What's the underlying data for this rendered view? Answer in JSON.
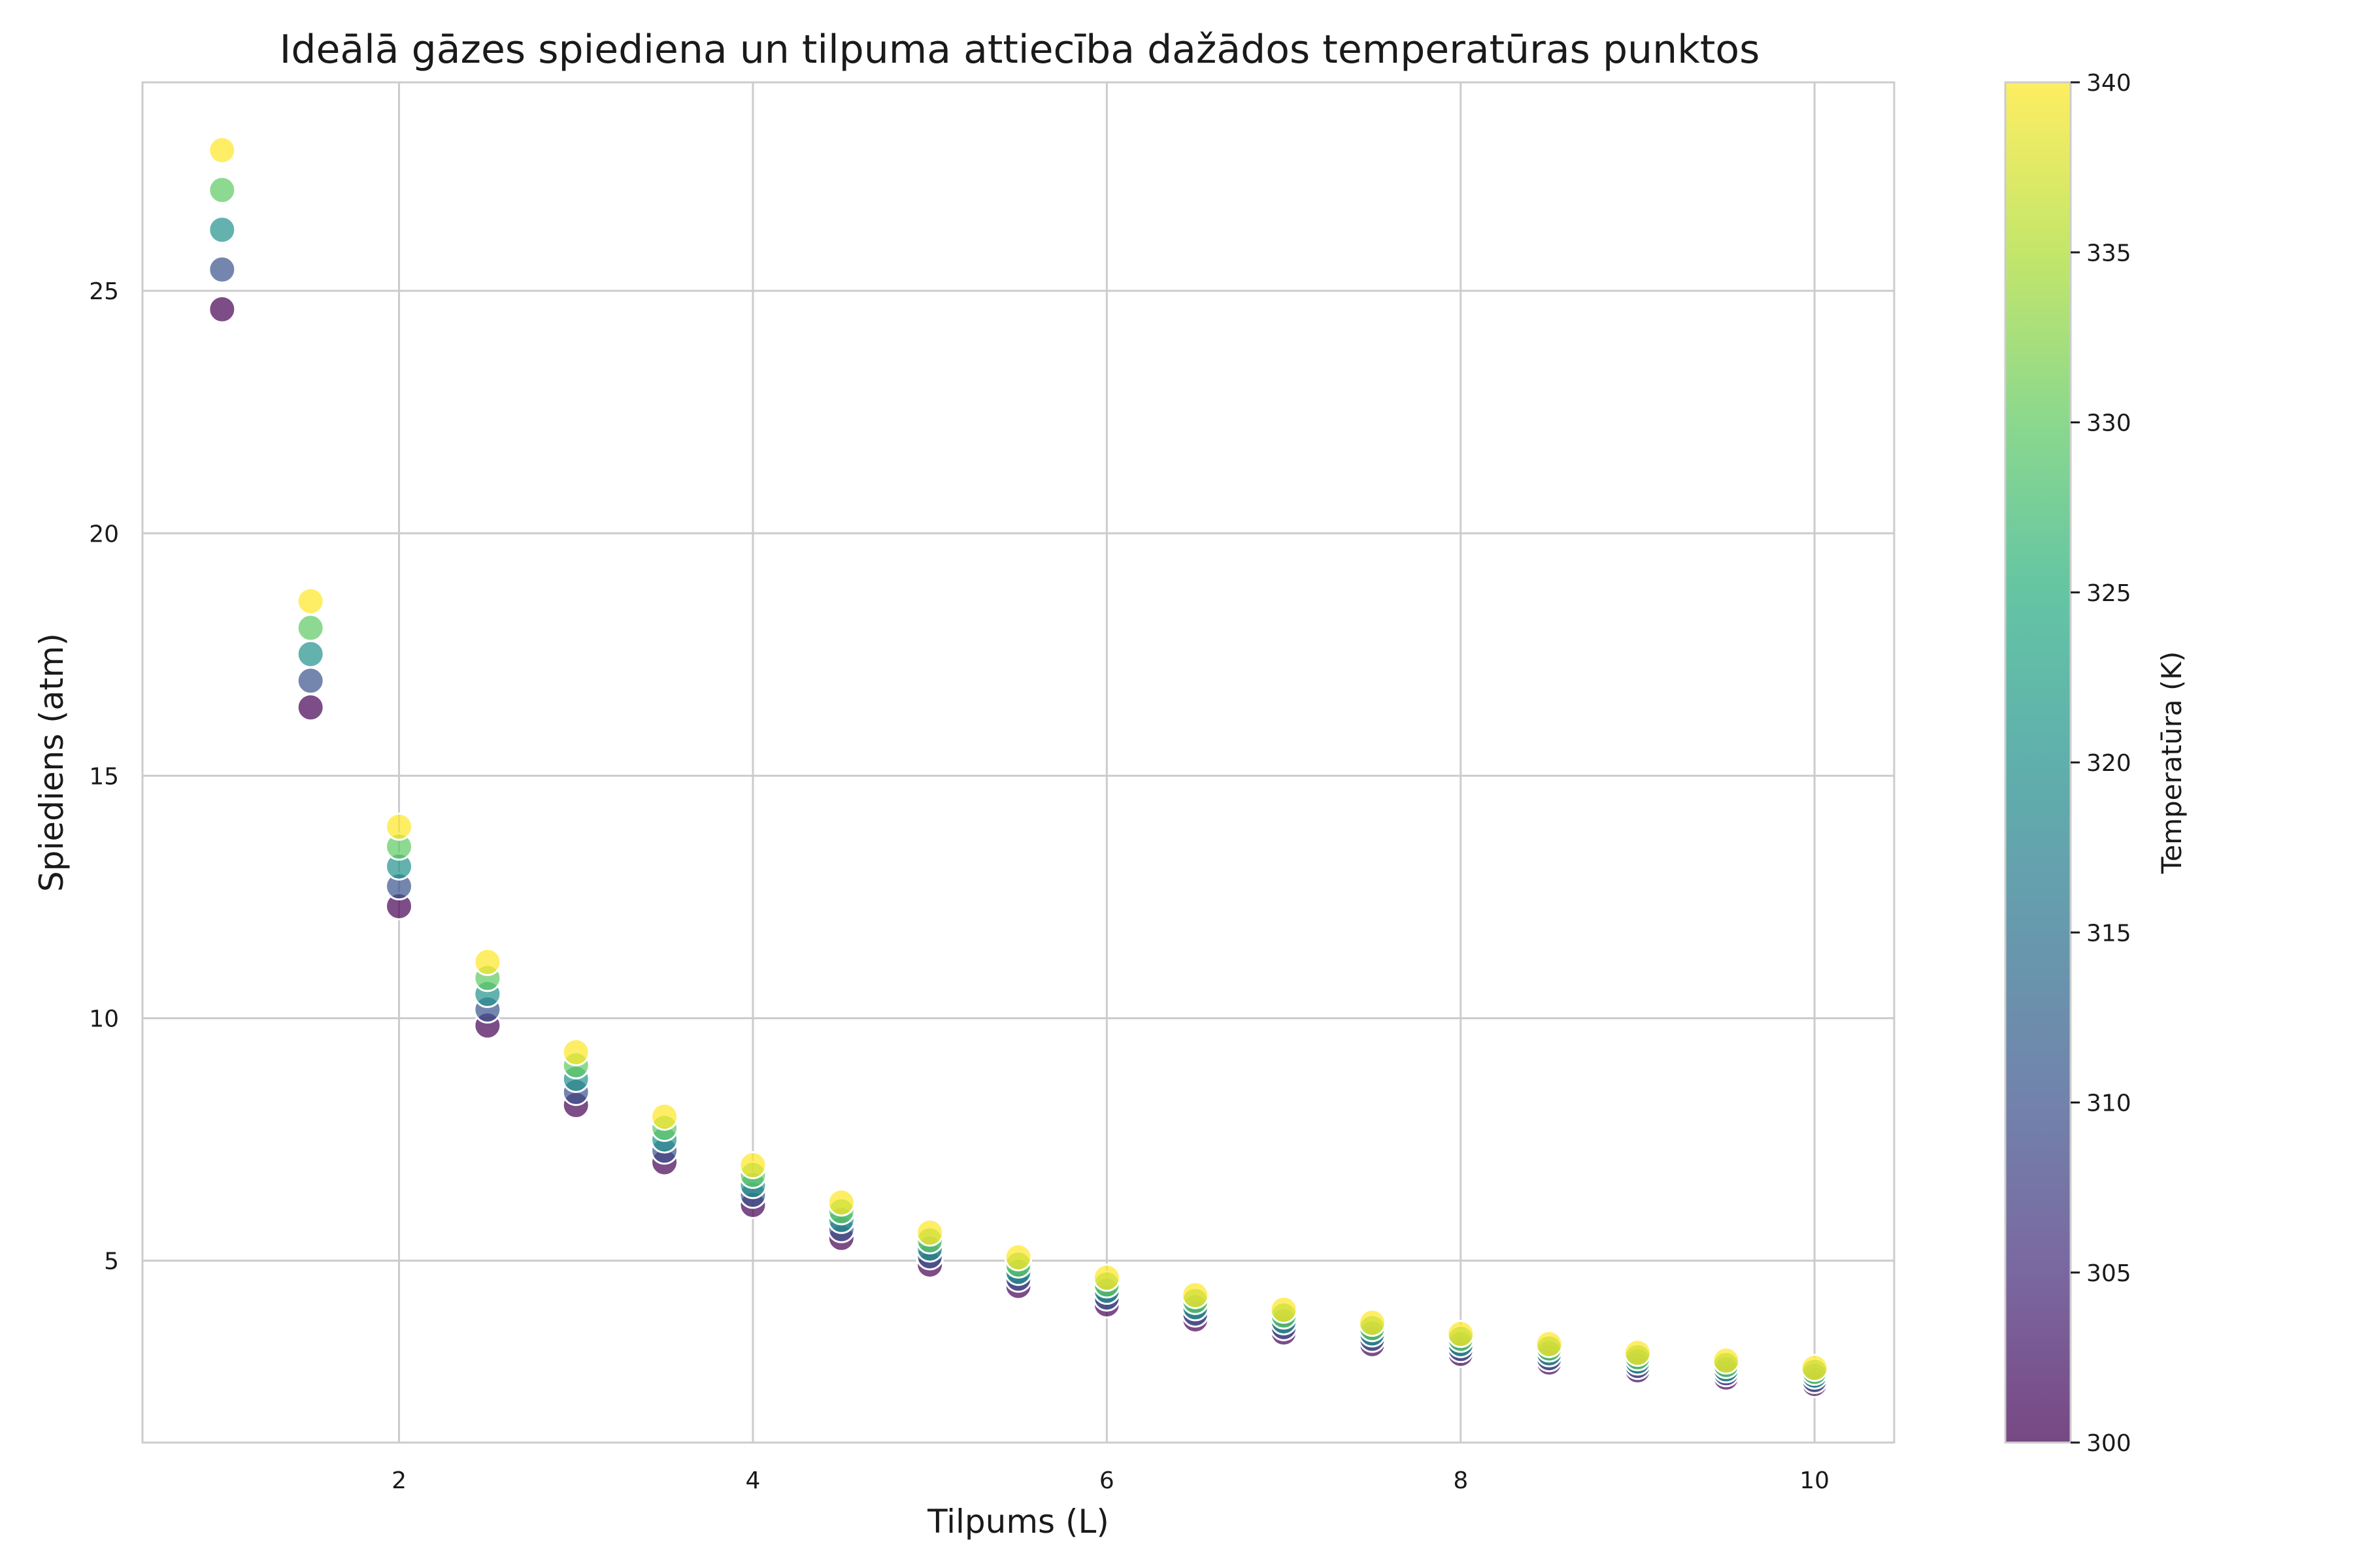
{
  "chart_data": {
    "type": "scatter",
    "title": "Ideālā gāzes spiediena un tilpuma attiecība dažādos temperatūras punktos",
    "xlabel": "Tilpums (L)",
    "ylabel": "Spiediens (atm)",
    "xlim": [
      0.55,
      10.45
    ],
    "ylim": [
      1.25,
      29.3
    ],
    "xticks": [
      2,
      4,
      6,
      8,
      10
    ],
    "yticks": [
      5,
      10,
      15,
      20,
      25
    ],
    "grid": true,
    "legend": "none",
    "colormap": "viridis",
    "colorbar": {
      "label": "Temperatūra (K)",
      "range": [
        300,
        340
      ],
      "ticks": [
        300,
        305,
        310,
        315,
        320,
        325,
        330,
        335,
        340
      ]
    },
    "temperatures": [
      300,
      310,
      320,
      330,
      340
    ],
    "x": [
      1.0,
      1.5,
      2.0,
      2.5,
      3.0,
      3.5,
      4.0,
      4.5,
      5.0,
      5.5,
      6.0,
      6.5,
      7.0,
      7.5,
      8.0,
      8.5,
      9.0,
      9.5,
      10.0
    ],
    "series": [
      {
        "temperature": 300,
        "values": [
          24.62,
          16.41,
          12.31,
          9.85,
          8.21,
          7.03,
          6.15,
          5.47,
          4.92,
          4.48,
          4.1,
          3.79,
          3.52,
          3.28,
          3.08,
          2.9,
          2.74,
          2.59,
          2.46
        ]
      },
      {
        "temperature": 310,
        "values": [
          25.44,
          16.96,
          12.72,
          10.18,
          8.48,
          7.27,
          6.36,
          5.65,
          5.09,
          4.63,
          4.24,
          3.91,
          3.63,
          3.39,
          3.18,
          2.99,
          2.83,
          2.68,
          2.54
        ]
      },
      {
        "temperature": 320,
        "values": [
          26.26,
          17.51,
          13.13,
          10.5,
          8.75,
          7.5,
          6.56,
          5.84,
          5.25,
          4.77,
          4.38,
          4.04,
          3.75,
          3.5,
          3.28,
          3.09,
          2.92,
          2.76,
          2.63
        ]
      },
      {
        "temperature": 330,
        "values": [
          27.08,
          18.05,
          13.54,
          10.83,
          9.03,
          7.74,
          6.77,
          6.02,
          5.42,
          4.92,
          4.51,
          4.17,
          3.87,
          3.61,
          3.39,
          3.19,
          3.01,
          2.85,
          2.71
        ]
      },
      {
        "temperature": 340,
        "values": [
          27.9,
          18.6,
          13.95,
          11.16,
          9.3,
          7.97,
          6.97,
          6.2,
          5.58,
          5.07,
          4.65,
          4.29,
          3.99,
          3.72,
          3.49,
          3.28,
          3.1,
          2.94,
          2.79
        ]
      }
    ]
  }
}
